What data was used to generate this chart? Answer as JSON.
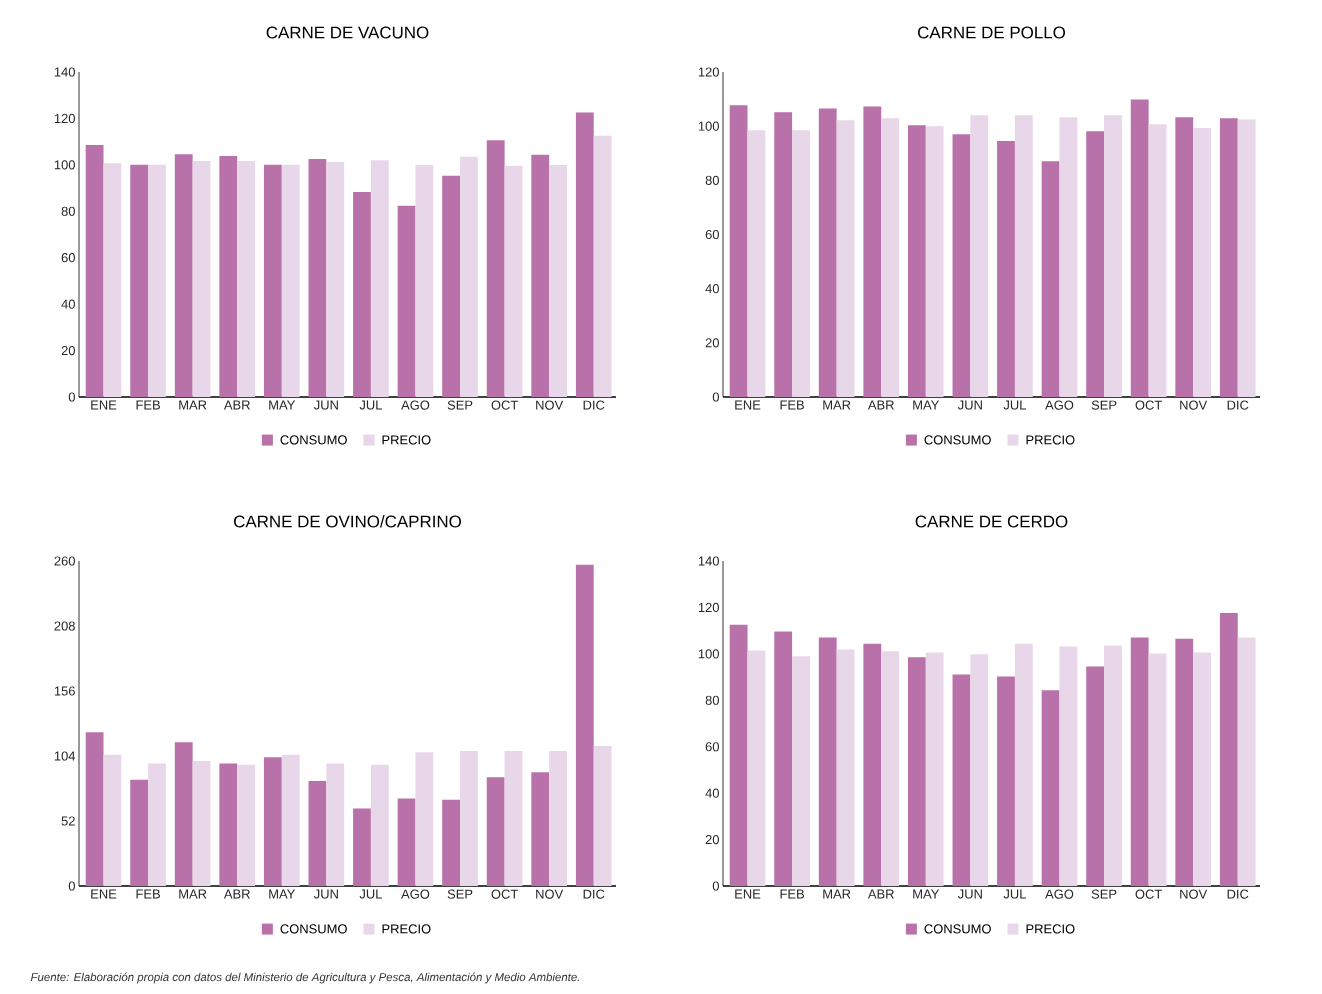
{
  "chart_data": [
    {
      "type": "bar",
      "title": "CARNE DE VACUNO",
      "categories": [
        "ENE",
        "FEB",
        "MAR",
        "ABR",
        "MAY",
        "JUN",
        "JUL",
        "AGO",
        "SEP",
        "OCT",
        "NOV",
        "DIC"
      ],
      "series": [
        {
          "name": "CONSUMO",
          "color": "#b971a9",
          "values": [
            108.5,
            100,
            104.6,
            103.8,
            100,
            102.5,
            88.3,
            82.4,
            95.3,
            110.6,
            104.3,
            122.6
          ]
        },
        {
          "name": "PRECIO",
          "color": "#e8d6e9",
          "values": [
            100.7,
            100,
            101.7,
            101.7,
            100,
            101.2,
            102,
            99.9,
            103.5,
            99.6,
            99.9,
            112.5
          ]
        }
      ],
      "ylim": [
        0,
        140
      ],
      "yticks": [
        0,
        20,
        40,
        60,
        80,
        100,
        120,
        140
      ],
      "legend": "bottom"
    },
    {
      "type": "bar",
      "title": "CARNE DE POLLO",
      "categories": [
        "ENE",
        "FEB",
        "MAR",
        "ABR",
        "MAY",
        "JUN",
        "JUL",
        "AGO",
        "SEP",
        "OCT",
        "NOV",
        "DIC"
      ],
      "series": [
        {
          "name": "CONSUMO",
          "color": "#b971a9",
          "values": [
            107.7,
            105.1,
            106.5,
            107.3,
            100.3,
            97,
            94.5,
            87,
            98.1,
            109.8,
            103.3,
            102.9
          ]
        },
        {
          "name": "PRECIO",
          "color": "#e8d6e9",
          "values": [
            98.5,
            98.5,
            102.2,
            102.9,
            100,
            104,
            104,
            103.3,
            104,
            100.7,
            99.3,
            102.5
          ]
        }
      ],
      "ylim": [
        0,
        120
      ],
      "yticks": [
        0,
        20,
        40,
        60,
        80,
        100,
        120
      ],
      "legend": "bottom"
    },
    {
      "type": "bar",
      "title": "CARNE DE OVINO/CAPRINO",
      "categories": [
        "ENE",
        "FEB",
        "MAR",
        "ABR",
        "MAY",
        "JUN",
        "JUL",
        "AGO",
        "SEP",
        "OCT",
        "NOV",
        "DIC"
      ],
      "series": [
        {
          "name": "CONSUMO",
          "color": "#b971a9",
          "values": [
            123,
            85,
            115,
            98,
            103,
            84,
            62,
            70,
            69,
            87,
            91,
            257
          ]
        },
        {
          "name": "PRECIO",
          "color": "#e8d6e9",
          "values": [
            105,
            98,
            100,
            97,
            105,
            98,
            97,
            107,
            108,
            108,
            108,
            112
          ]
        }
      ],
      "ylim": [
        0,
        260
      ],
      "yticks": [
        0,
        52,
        104,
        156,
        208,
        260
      ],
      "legend": "bottom",
      "annotations": [
        "Fuente: Elaboración propia con datos del Ministerio de Agricultura y Pesca, Alimentación y Medio Ambiente."
      ]
    },
    {
      "type": "bar",
      "title": "CARNE DE CERDO",
      "categories": [
        "ENE",
        "FEB",
        "MAR",
        "ABR",
        "MAY",
        "JUN",
        "JUL",
        "AGO",
        "SEP",
        "OCT",
        "NOV",
        "DIC"
      ],
      "series": [
        {
          "name": "CONSUMO",
          "color": "#b971a9",
          "values": [
            112.5,
            109.6,
            107,
            104.4,
            98.5,
            91.1,
            90.3,
            84.3,
            94.6,
            107,
            106.5,
            117.6
          ]
        },
        {
          "name": "PRECIO",
          "color": "#e8d6e9",
          "values": [
            101.4,
            99,
            101.9,
            101.1,
            100.6,
            99.8,
            104.4,
            103.2,
            103.6,
            100.1,
            100.6,
            107
          ]
        }
      ],
      "ylim": [
        0,
        140
      ],
      "yticks": [
        0,
        20,
        40,
        60,
        80,
        100,
        120,
        140
      ],
      "legend": "bottom"
    }
  ]
}
